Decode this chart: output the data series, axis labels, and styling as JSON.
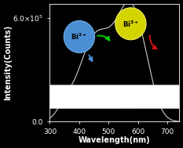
{
  "background_color": "#000000",
  "axes_facecolor": "#000000",
  "figure_facecolor": "#000000",
  "line_color": "#cccccc",
  "xlabel": "Wavelength(nm)",
  "ylabel": "Intensity(Counts)",
  "xlim": [
    300,
    740
  ],
  "ylim": [
    0,
    680000.0
  ],
  "ytick_vals": [
    0.0,
    600000.0
  ],
  "ytick_labels": [
    "0.0",
    "6.0x10⁵"
  ],
  "xticks": [
    300,
    400,
    500,
    600,
    700
  ],
  "label_fontsize": 7,
  "tick_fontsize": 6.5,
  "bi2_circle_color": "#4a8fd4",
  "bi3_circle_color": "#d4d400",
  "arrow_blue_color": "#4a8fd4",
  "arrow_green_color": "#00cc00",
  "arrow_red_color": "#cc1111"
}
